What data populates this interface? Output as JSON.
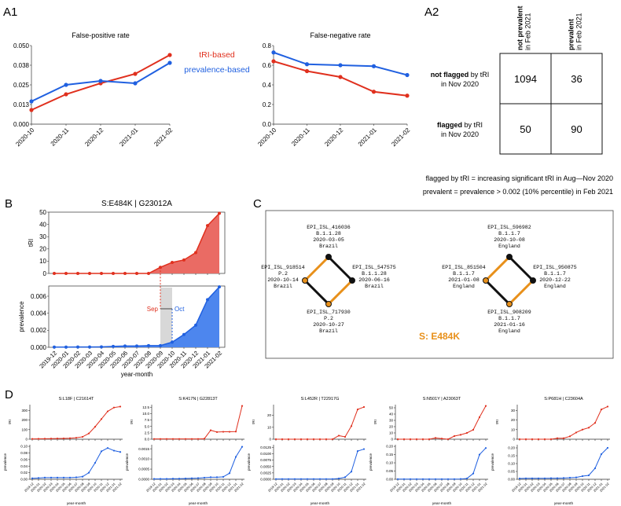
{
  "colors": {
    "red": "#e0301e",
    "blue": "#2060e0",
    "orange": "#e8901a",
    "grey": "#d8d8d8"
  },
  "panel_labels": {
    "A1": "A1",
    "A2": "A2",
    "B": "B",
    "C": "C",
    "D": "D"
  },
  "legend": {
    "tri": "tRI-based",
    "prev": "prevalence-based"
  },
  "months_a": [
    "2020-10",
    "2020-11",
    "2020-12",
    "2021-01",
    "2021-02"
  ],
  "months_b": [
    "2019-12",
    "2020-01",
    "2020-02",
    "2020-03",
    "2020-04",
    "2020-05",
    "2020-06",
    "2020-07",
    "2020-08",
    "2020-09",
    "2020-10",
    "2020-11",
    "2020-12",
    "2021-01",
    "2021-02"
  ],
  "chart_data": [
    {
      "id": "fpr",
      "type": "line",
      "title": "False-positive rate",
      "categories": [
        "2020-10",
        "2020-11",
        "2020-12",
        "2021-01",
        "2021-02"
      ],
      "yticks": [
        "0.000",
        "0.013",
        "0.025",
        "0.038",
        "0.050"
      ],
      "ylim": [
        0,
        0.05
      ],
      "series": [
        {
          "name": "tRI-based",
          "color": "#e0301e",
          "values": [
            0.009,
            0.019,
            0.026,
            0.032,
            0.044
          ]
        },
        {
          "name": "prevalence-based",
          "color": "#2060e0",
          "values": [
            0.0145,
            0.025,
            0.0275,
            0.026,
            0.039
          ]
        }
      ]
    },
    {
      "id": "fnr",
      "type": "line",
      "title": "False-negative rate",
      "categories": [
        "2020-10",
        "2020-11",
        "2020-12",
        "2021-01",
        "2021-02"
      ],
      "yticks": [
        "0.0",
        "0.2",
        "0.4",
        "0.6",
        "0.8"
      ],
      "ylim": [
        0,
        0.8
      ],
      "series": [
        {
          "name": "tRI-based",
          "color": "#e0301e",
          "values": [
            0.64,
            0.54,
            0.48,
            0.33,
            0.29
          ]
        },
        {
          "name": "prevalence-based",
          "color": "#2060e0",
          "values": [
            0.73,
            0.61,
            0.6,
            0.59,
            0.5
          ]
        }
      ]
    },
    {
      "id": "table",
      "type": "table",
      "col_headers": [
        {
          "bold": "not prevalent",
          "sub": "in Feb 2021"
        },
        {
          "bold": "prevalent",
          "sub": "in Feb 2021"
        }
      ],
      "row_headers": [
        {
          "pre": "not flagged",
          "post": " by tRI",
          "line2": "in Nov 2020"
        },
        {
          "pre": "flagged",
          "post": " by tRI",
          "line2": "in Nov 2020"
        }
      ],
      "cells": [
        [
          "1094",
          "36"
        ],
        [
          "50",
          "90"
        ]
      ],
      "notes": [
        "flagged by tRI = increasing significant tRI in Aug—Nov 2020",
        "prevalent = prevalence > 0.002 (10% percentile) in Feb 2021"
      ]
    },
    {
      "id": "b_tri",
      "type": "area",
      "title": "S:E484K  |  G23012A",
      "ylabel": "tRI",
      "categories": [
        "2019-12",
        "2020-01",
        "2020-02",
        "2020-03",
        "2020-04",
        "2020-05",
        "2020-06",
        "2020-07",
        "2020-08",
        "2020-09",
        "2020-10",
        "2020-11",
        "2020-12",
        "2021-01",
        "2021-02"
      ],
      "yticks": [
        "0",
        "10",
        "20",
        "30",
        "40",
        "50"
      ],
      "ylim": [
        0,
        50
      ],
      "values": [
        0,
        0,
        0,
        0,
        0,
        0,
        0,
        0,
        0,
        5,
        9,
        11,
        17,
        39,
        49
      ]
    },
    {
      "id": "b_prev",
      "type": "area",
      "ylabel": "prevalence",
      "xlabel": "year-month",
      "categories": [
        "2019-12",
        "2020-01",
        "2020-02",
        "2020-03",
        "2020-04",
        "2020-05",
        "2020-06",
        "2020-07",
        "2020-08",
        "2020-09",
        "2020-10",
        "2020-11",
        "2020-12",
        "2021-01",
        "2021-02"
      ],
      "yticks": [
        "0.000",
        "0.002",
        "0.004",
        "0.006"
      ],
      "ylim": [
        0,
        0.0072
      ],
      "values": [
        2e-05,
        2e-05,
        3e-05,
        3e-05,
        5e-05,
        0.0001,
        0.00015,
        0.00015,
        0.0002,
        0.0002,
        0.0006,
        0.0015,
        0.0026,
        0.0056,
        0.0071
      ],
      "annotations": {
        "sep": "Sep",
        "oct": "Oct"
      }
    },
    {
      "id": "d_tri",
      "type": "line",
      "ylabel": "tRI",
      "xlabel": "year-month",
      "panels": [
        {
          "title": "S:L18F  |  C21614T",
          "yticks": [
            "0",
            "100",
            "200",
            "300"
          ],
          "ylim": [
            0,
            360
          ],
          "values": [
            3,
            4,
            5,
            6,
            7,
            8,
            10,
            15,
            25,
            60,
            130,
            210,
            290,
            330,
            340
          ]
        },
        {
          "title": "S:K417N  |  G22813T",
          "yticks": [
            "0.0",
            "2.5",
            "5.0",
            "7.5",
            "10.0",
            "12.5"
          ],
          "ylim": [
            0,
            13.5
          ],
          "values": [
            0.1,
            0.1,
            0.1,
            0.1,
            0.1,
            0.1,
            0.1,
            0.1,
            0.2,
            3.5,
            2.8,
            2.9,
            2.9,
            3.0,
            13.0
          ]
        },
        {
          "title": "S:L452R  |  T22917G",
          "yticks": [
            "0",
            "10",
            "20"
          ],
          "ylim": [
            0,
            29
          ],
          "values": [
            0,
            0,
            0,
            0,
            0,
            0,
            0,
            0,
            0,
            0,
            3,
            2,
            11,
            25,
            27
          ]
        },
        {
          "title": "S:N501Y  |  A23063T",
          "yticks": [
            "0",
            "10",
            "20",
            "30",
            "40",
            "50"
          ],
          "ylim": [
            0,
            55
          ],
          "values": [
            0,
            0,
            0,
            0,
            0,
            0,
            2,
            1,
            0,
            5,
            7,
            10,
            15,
            35,
            53
          ]
        },
        {
          "title": "S:P681H  |  C23604A",
          "yticks": [
            "0",
            "10",
            "20",
            "30"
          ],
          "ylim": [
            0,
            36
          ],
          "values": [
            0,
            0,
            0,
            0,
            0,
            0,
            1,
            1,
            3,
            7,
            10,
            12,
            17,
            31,
            34
          ]
        }
      ]
    },
    {
      "id": "d_prev",
      "type": "line",
      "ylabel": "prevalence",
      "panels": [
        {
          "yticks": [
            "0.00",
            "0.02",
            "0.04",
            "0.06",
            "0.08",
            "0.10"
          ],
          "ylim": [
            0,
            0.105
          ],
          "values": [
            0.003,
            0.004,
            0.005,
            0.005,
            0.005,
            0.005,
            0.005,
            0.006,
            0.008,
            0.02,
            0.05,
            0.085,
            0.095,
            0.087,
            0.083
          ]
        },
        {
          "yticks": [
            "0.0000",
            "0.0005",
            "0.0010",
            "0.0015"
          ],
          "ylim": [
            0,
            0.0017
          ],
          "values": [
            2e-05,
            2e-05,
            2e-05,
            3e-05,
            3e-05,
            4e-05,
            5e-05,
            6e-05,
            8e-05,
            0.0001,
            0.0001,
            0.00012,
            0.0003,
            0.0011,
            0.0016
          ]
        },
        {
          "yticks": [
            "0.0000",
            "0.0025",
            "0.0050",
            "0.0075",
            "0.0100",
            "0.0125"
          ],
          "ylim": [
            0,
            0.0135
          ],
          "values": [
            0.0001,
            0.0001,
            0.0001,
            0.0001,
            0.0001,
            0.0001,
            0.0001,
            0.0001,
            0.0001,
            0.0001,
            0.0003,
            0.0008,
            0.003,
            0.011,
            0.0118
          ]
        },
        {
          "yticks": [
            "0.00",
            "0.05",
            "0.10",
            "0.15",
            "0.20"
          ],
          "ylim": [
            0,
            0.21
          ],
          "values": [
            0.001,
            0.001,
            0.001,
            0.001,
            0.001,
            0.001,
            0.001,
            0.001,
            0.001,
            0.001,
            0.002,
            0.005,
            0.035,
            0.15,
            0.19
          ]
        },
        {
          "yticks": [
            "0.00",
            "0.05",
            "0.10",
            "0.15",
            "0.20"
          ],
          "ylim": [
            0,
            0.22
          ],
          "values": [
            0.005,
            0.006,
            0.006,
            0.006,
            0.006,
            0.007,
            0.007,
            0.008,
            0.01,
            0.012,
            0.02,
            0.025,
            0.07,
            0.16,
            0.2
          ]
        }
      ]
    }
  ],
  "network": {
    "caption": "S: E484K",
    "groups": [
      {
        "top": {
          "id": "EPI_ISL_416036",
          "lineage": "B.1.1.28",
          "date": "2020-03-05",
          "place": "Brazil"
        },
        "left": {
          "id": "EPI_ISL_918514",
          "lineage": "P.2",
          "date": "2020-10-14",
          "place": "Brazil"
        },
        "right": {
          "id": "EPI_ISL_547575",
          "lineage": "B.1.1.28",
          "date": "2020-06-16",
          "place": "Brazil"
        },
        "bottom": {
          "id": "EPI_ISL_717930",
          "lineage": "P.2",
          "date": "2020-10-27",
          "place": "Brazil"
        }
      },
      {
        "top": {
          "id": "EPI_ISL_596982",
          "lineage": "B.1.1.7",
          "date": "2020-10-08",
          "place": "England"
        },
        "left": {
          "id": "EPI_ISL_851504",
          "lineage": "B.1.1.7",
          "date": "2021-01-08",
          "place": "England"
        },
        "right": {
          "id": "EPI_ISL_950875",
          "lineage": "B.1.1.7",
          "date": "2020-12-22",
          "place": "England"
        },
        "bottom": {
          "id": "EPI_ISL_908209",
          "lineage": "B.1.1.7",
          "date": "2021-01-16",
          "place": "England"
        }
      }
    ]
  }
}
